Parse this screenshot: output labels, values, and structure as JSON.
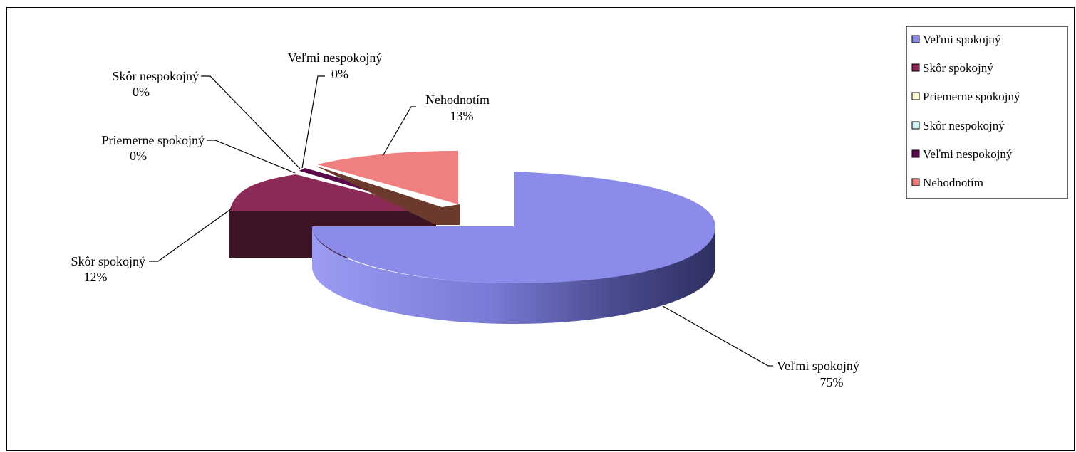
{
  "chart_data": {
    "type": "pie",
    "style": "3d-exploded",
    "categories": [
      "Veľmi spokojný",
      "Skôr spokojný",
      "Priemerne spokojný",
      "Skôr nespokojný",
      "Veľmi nespokojný",
      "Nehodnotím"
    ],
    "values": [
      75,
      12,
      0,
      0,
      0,
      13
    ],
    "value_labels": [
      "75%",
      "12%",
      "0%",
      "0%",
      "0%",
      "13%"
    ],
    "colors": [
      "#8b8cea",
      "#8c2a57",
      "#fffbd1",
      "#d1f3f7",
      "#5a0a4a",
      "#f08080"
    ],
    "legend_position": "right"
  }
}
